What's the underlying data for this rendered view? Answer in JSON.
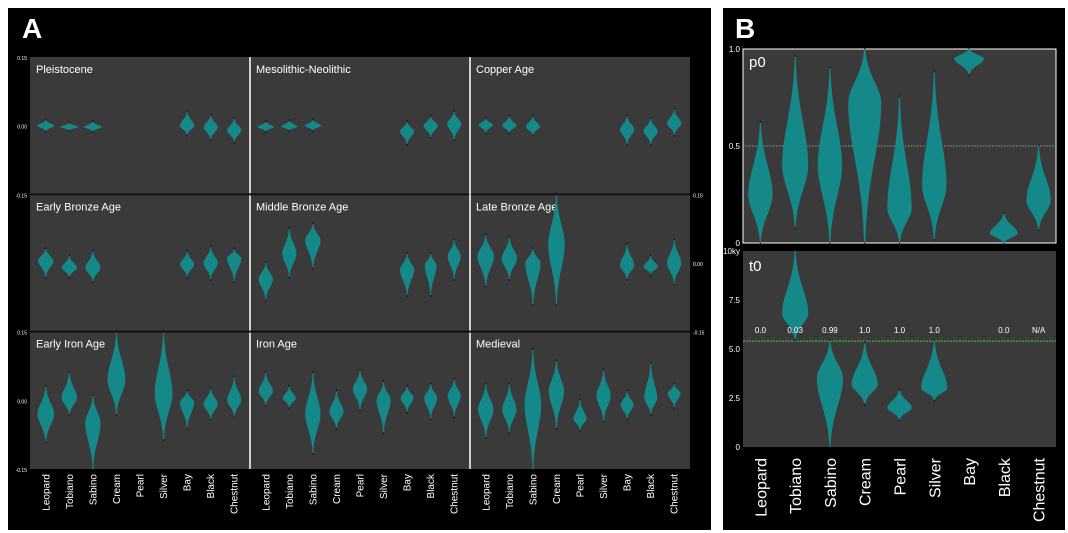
{
  "colors": {
    "background": "#000000",
    "panel": "#3a3a3a",
    "violin": "#15898a",
    "white": "#ffffff",
    "reference_gray": "#9a9a9a",
    "reference_green": "#3ccf3c"
  },
  "figure": {
    "panel_a_label": "A",
    "panel_b_label": "B"
  },
  "chart_data": [
    {
      "type": "violin",
      "panel": "A",
      "categories": [
        "Leopard",
        "Tobiano",
        "Sabino",
        "Cream",
        "Pearl",
        "Silver",
        "Bay",
        "Black",
        "Chestnut"
      ],
      "y_tick_labels": {
        "row1": [
          "0.15",
          "0.00",
          "-0.15"
        ],
        "row2_right": [
          "0.15",
          "0.00",
          "-0.15"
        ],
        "row3": [
          "0.15",
          "0.00",
          "-0.15"
        ]
      },
      "subplots": [
        {
          "title": "Pleistocene",
          "violins": [
            {
              "center": 0.0,
              "top": 0.012,
              "bottom": -0.012,
              "width": 0.7
            },
            {
              "center": -0.003,
              "top": 0.006,
              "bottom": -0.01,
              "width": 0.75
            },
            {
              "center": -0.003,
              "top": 0.008,
              "bottom": -0.012,
              "width": 0.75
            },
            null,
            null,
            null,
            {
              "center": 0.0,
              "top": 0.03,
              "bottom": -0.02,
              "width": 0.6
            },
            {
              "center": -0.003,
              "top": 0.022,
              "bottom": -0.03,
              "width": 0.6
            },
            {
              "center": -0.01,
              "top": 0.015,
              "bottom": -0.035,
              "width": 0.6
            }
          ]
        },
        {
          "title": "Mesolithic-Neolithic",
          "violins": [
            {
              "center": -0.003,
              "top": 0.008,
              "bottom": -0.012,
              "width": 0.7
            },
            {
              "center": -0.002,
              "top": 0.01,
              "bottom": -0.01,
              "width": 0.7
            },
            {
              "center": 0.0,
              "top": 0.012,
              "bottom": -0.01,
              "width": 0.7
            },
            null,
            null,
            null,
            {
              "center": -0.012,
              "top": 0.008,
              "bottom": -0.04,
              "width": 0.6
            },
            {
              "center": 0.0,
              "top": 0.02,
              "bottom": -0.025,
              "width": 0.6
            },
            {
              "center": 0.004,
              "top": 0.03,
              "bottom": -0.03,
              "width": 0.6
            }
          ]
        },
        {
          "title": "Copper Age",
          "violins": [
            {
              "center": 0.002,
              "top": 0.015,
              "bottom": -0.015,
              "width": 0.6
            },
            {
              "center": 0.0,
              "top": 0.02,
              "bottom": -0.015,
              "width": 0.6
            },
            {
              "center": -0.002,
              "top": 0.02,
              "bottom": -0.02,
              "width": 0.6
            },
            null,
            null,
            null,
            {
              "center": -0.008,
              "top": 0.02,
              "bottom": -0.04,
              "width": 0.6
            },
            {
              "center": -0.012,
              "top": 0.015,
              "bottom": -0.04,
              "width": 0.6
            },
            {
              "center": 0.005,
              "top": 0.035,
              "bottom": -0.02,
              "width": 0.6
            }
          ]
        },
        {
          "title": "Early Bronze Age",
          "violins": [
            {
              "center": 0.005,
              "top": 0.03,
              "bottom": -0.03,
              "width": 0.65
            },
            {
              "center": -0.01,
              "top": 0.015,
              "bottom": -0.03,
              "width": 0.65
            },
            {
              "center": -0.01,
              "top": 0.025,
              "bottom": -0.04,
              "width": 0.65
            },
            null,
            null,
            null,
            {
              "center": -0.003,
              "top": 0.025,
              "bottom": -0.03,
              "width": 0.6
            },
            {
              "center": 0.0,
              "top": 0.035,
              "bottom": -0.035,
              "width": 0.6
            },
            {
              "center": 0.01,
              "top": 0.03,
              "bottom": -0.04,
              "width": 0.6
            }
          ]
        },
        {
          "title": "Middle Bronze Age",
          "violins": [
            {
              "center": -0.035,
              "top": 0.0,
              "bottom": -0.08,
              "width": 0.6
            },
            {
              "center": 0.02,
              "top": 0.075,
              "bottom": -0.03,
              "width": 0.6
            },
            {
              "center": 0.05,
              "top": 0.085,
              "bottom": -0.01,
              "width": 0.65
            },
            null,
            null,
            null,
            {
              "center": -0.015,
              "top": 0.02,
              "bottom": -0.07,
              "width": 0.6
            },
            {
              "center": -0.005,
              "top": 0.02,
              "bottom": -0.07,
              "width": 0.5
            },
            {
              "center": 0.015,
              "top": 0.05,
              "bottom": -0.035,
              "width": 0.55
            }
          ]
        },
        {
          "title": "Late Bronze Age",
          "violins": [
            {
              "center": 0.015,
              "top": 0.06,
              "bottom": -0.05,
              "width": 0.7
            },
            {
              "center": 0.01,
              "top": 0.055,
              "bottom": -0.035,
              "width": 0.65
            },
            {
              "center": 0.0,
              "top": 0.03,
              "bottom": -0.09,
              "width": 0.65
            },
            {
              "center": 0.04,
              "top": 0.15,
              "bottom": -0.09,
              "width": 0.7
            },
            null,
            null,
            {
              "center": -0.005,
              "top": 0.04,
              "bottom": -0.035,
              "width": 0.6
            },
            {
              "center": -0.008,
              "top": 0.015,
              "bottom": -0.025,
              "width": 0.6
            },
            {
              "center": 0.0,
              "top": 0.05,
              "bottom": -0.045,
              "width": 0.6
            }
          ]
        },
        {
          "title": "Early Iron Age",
          "violins": [
            {
              "center": -0.03,
              "top": 0.03,
              "bottom": -0.09,
              "width": 0.7
            },
            {
              "center": 0.005,
              "top": 0.06,
              "bottom": -0.03,
              "width": 0.65
            },
            {
              "center": -0.05,
              "top": 0.01,
              "bottom": -0.15,
              "width": 0.65
            },
            {
              "center": 0.045,
              "top": 0.15,
              "bottom": -0.03,
              "width": 0.75
            },
            null,
            {
              "center": 0.015,
              "top": 0.15,
              "bottom": -0.085,
              "width": 0.75
            },
            {
              "center": -0.005,
              "top": 0.02,
              "bottom": -0.06,
              "width": 0.6
            },
            {
              "center": -0.008,
              "top": 0.025,
              "bottom": -0.04,
              "width": 0.6
            },
            {
              "center": 0.0,
              "top": 0.05,
              "bottom": -0.035,
              "width": 0.6
            }
          ]
        },
        {
          "title": "Iron Age",
          "violins": [
            {
              "center": 0.02,
              "top": 0.06,
              "bottom": -0.01,
              "width": 0.6
            },
            {
              "center": 0.005,
              "top": 0.03,
              "bottom": -0.015,
              "width": 0.55
            },
            {
              "center": -0.03,
              "top": 0.06,
              "bottom": -0.115,
              "width": 0.65
            },
            {
              "center": -0.025,
              "top": 0.02,
              "bottom": -0.06,
              "width": 0.6
            },
            {
              "center": 0.025,
              "top": 0.065,
              "bottom": -0.02,
              "width": 0.6
            },
            {
              "center": 0.0,
              "top": 0.04,
              "bottom": -0.07,
              "width": 0.6
            },
            {
              "center": 0.005,
              "top": 0.03,
              "bottom": -0.025,
              "width": 0.55
            },
            {
              "center": 0.005,
              "top": 0.035,
              "bottom": -0.04,
              "width": 0.55
            },
            {
              "center": 0.01,
              "top": 0.045,
              "bottom": -0.035,
              "width": 0.55
            }
          ]
        },
        {
          "title": "Medieval",
          "violins": [
            {
              "center": -0.02,
              "top": 0.035,
              "bottom": -0.08,
              "width": 0.65
            },
            {
              "center": -0.02,
              "top": 0.035,
              "bottom": -0.07,
              "width": 0.6
            },
            {
              "center": -0.01,
              "top": 0.11,
              "bottom": -0.15,
              "width": 0.7
            },
            {
              "center": 0.02,
              "top": 0.085,
              "bottom": -0.06,
              "width": 0.65
            },
            {
              "center": -0.04,
              "top": 0.0,
              "bottom": -0.065,
              "width": 0.55
            },
            {
              "center": 0.01,
              "top": 0.065,
              "bottom": -0.045,
              "width": 0.6
            },
            {
              "center": -0.01,
              "top": 0.02,
              "bottom": -0.04,
              "width": 0.55
            },
            {
              "center": 0.005,
              "top": 0.08,
              "bottom": -0.03,
              "width": 0.55
            },
            {
              "center": 0.015,
              "top": 0.035,
              "bottom": -0.015,
              "width": 0.55
            }
          ]
        }
      ]
    },
    {
      "type": "violin",
      "panel": "B",
      "title": "p0",
      "categories": [
        "Leopard",
        "Tobiano",
        "Sabino",
        "Cream",
        "Pearl",
        "Silver",
        "Bay",
        "Black",
        "Chestnut"
      ],
      "y_ticks": [
        "0",
        "0.5",
        "1.0"
      ],
      "ylim": [
        0,
        1
      ],
      "reference_line": 0.5,
      "violins": [
        {
          "center": 0.25,
          "top": 0.62,
          "bottom": 0.0,
          "width": 0.7
        },
        {
          "center": 0.4,
          "top": 0.96,
          "bottom": 0.08,
          "width": 0.75
        },
        {
          "center": 0.4,
          "top": 0.9,
          "bottom": 0.0,
          "width": 0.7
        },
        {
          "center": 0.72,
          "top": 1.0,
          "bottom": 0.0,
          "width": 0.95
        },
        {
          "center": 0.18,
          "top": 0.75,
          "bottom": 0.0,
          "width": 0.7
        },
        {
          "center": 0.3,
          "top": 0.88,
          "bottom": 0.02,
          "width": 0.7
        },
        {
          "center": 0.95,
          "top": 1.0,
          "bottom": 0.87,
          "width": 0.85
        },
        {
          "center": 0.05,
          "top": 0.15,
          "bottom": 0.0,
          "width": 0.8
        },
        {
          "center": 0.22,
          "top": 0.5,
          "bottom": 0.07,
          "width": 0.7
        }
      ]
    },
    {
      "type": "violin",
      "panel": "B",
      "title": "t0",
      "categories": [
        "Leopard",
        "Tobiano",
        "Sabino",
        "Cream",
        "Pearl",
        "Silver",
        "Bay",
        "Black",
        "Chestnut"
      ],
      "y_ticks": [
        "0",
        "2.5",
        "5.0",
        "7.5",
        "10ky"
      ],
      "ylim": [
        0,
        10
      ],
      "reference_line": 5.4,
      "annotations": [
        "0.0",
        "0.03",
        "0.99",
        "1.0",
        "1.0",
        "1.0",
        "",
        "0.0",
        "N/A"
      ],
      "violins": [
        null,
        {
          "center": 6.8,
          "top": 10.0,
          "bottom": 5.5,
          "width": 0.75
        },
        {
          "center": 3.5,
          "top": 5.4,
          "bottom": 0.0,
          "width": 0.75
        },
        {
          "center": 3.2,
          "top": 5.3,
          "bottom": 2.2,
          "width": 0.75
        },
        {
          "center": 2.0,
          "top": 2.9,
          "bottom": 1.4,
          "width": 0.7
        },
        {
          "center": 3.0,
          "top": 5.4,
          "bottom": 2.4,
          "width": 0.75
        },
        null,
        null,
        null
      ]
    }
  ]
}
